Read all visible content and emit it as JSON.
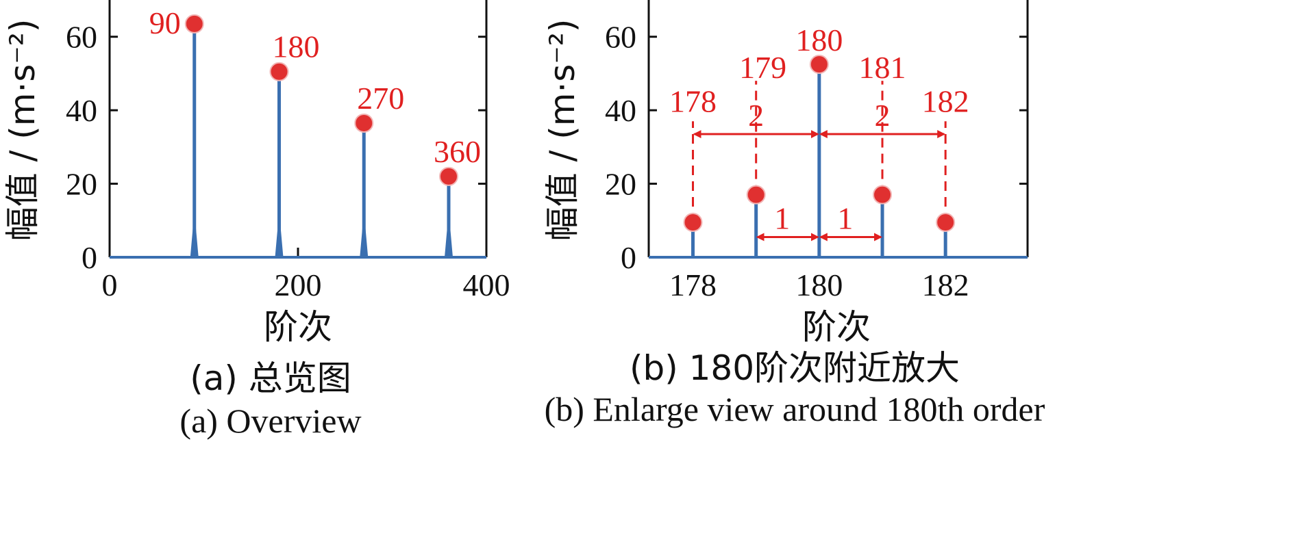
{
  "colors": {
    "stem": "#3a6fb0",
    "marker": "#e03030",
    "annotation": "#e02020",
    "axis": "#3a6fb0",
    "frame": "#111111"
  },
  "chart_data": [
    {
      "type": "stem",
      "xlabel": "阶次",
      "ylabel": "幅值 / (m·s⁻²)",
      "xlim": [
        0,
        400
      ],
      "ylim": [
        0,
        70
      ],
      "xticks": [
        0,
        200,
        400
      ],
      "yticks": [
        0,
        20,
        40,
        60
      ],
      "peaks": [
        {
          "x": 90,
          "y": 63.5,
          "label": "90"
        },
        {
          "x": 180,
          "y": 50.5,
          "label": "180"
        },
        {
          "x": 270,
          "y": 36.5,
          "label": "270"
        },
        {
          "x": 360,
          "y": 22,
          "label": "360"
        }
      ],
      "caption_zh": "(a)  总览图",
      "caption_en": "(a)  Overview"
    },
    {
      "type": "stem",
      "xlabel": "阶次",
      "ylabel": "幅值 / (m·s⁻²)",
      "xlim": [
        177.3,
        183.3
      ],
      "ylim": [
        0,
        70
      ],
      "xticks": [
        178,
        180,
        182
      ],
      "yticks": [
        0,
        20,
        40,
        60
      ],
      "stems": [
        {
          "x": 178,
          "y": 9.5,
          "label": "178"
        },
        {
          "x": 179,
          "y": 17,
          "label": "179"
        },
        {
          "x": 180,
          "y": 52.5,
          "label": "180"
        },
        {
          "x": 181,
          "y": 17,
          "label": "181"
        },
        {
          "x": 182,
          "y": 9.5,
          "label": "182"
        }
      ],
      "spacing_annotations": [
        {
          "from": 178,
          "to": 180,
          "label": "2"
        },
        {
          "from": 180,
          "to": 182,
          "label": "2"
        },
        {
          "from": 179,
          "to": 180,
          "label": "1"
        },
        {
          "from": 180,
          "to": 181,
          "label": "1"
        }
      ],
      "caption_zh": "(b)  180阶次附近放大",
      "caption_en": "(b)  Enlarge view around 180th order"
    }
  ]
}
